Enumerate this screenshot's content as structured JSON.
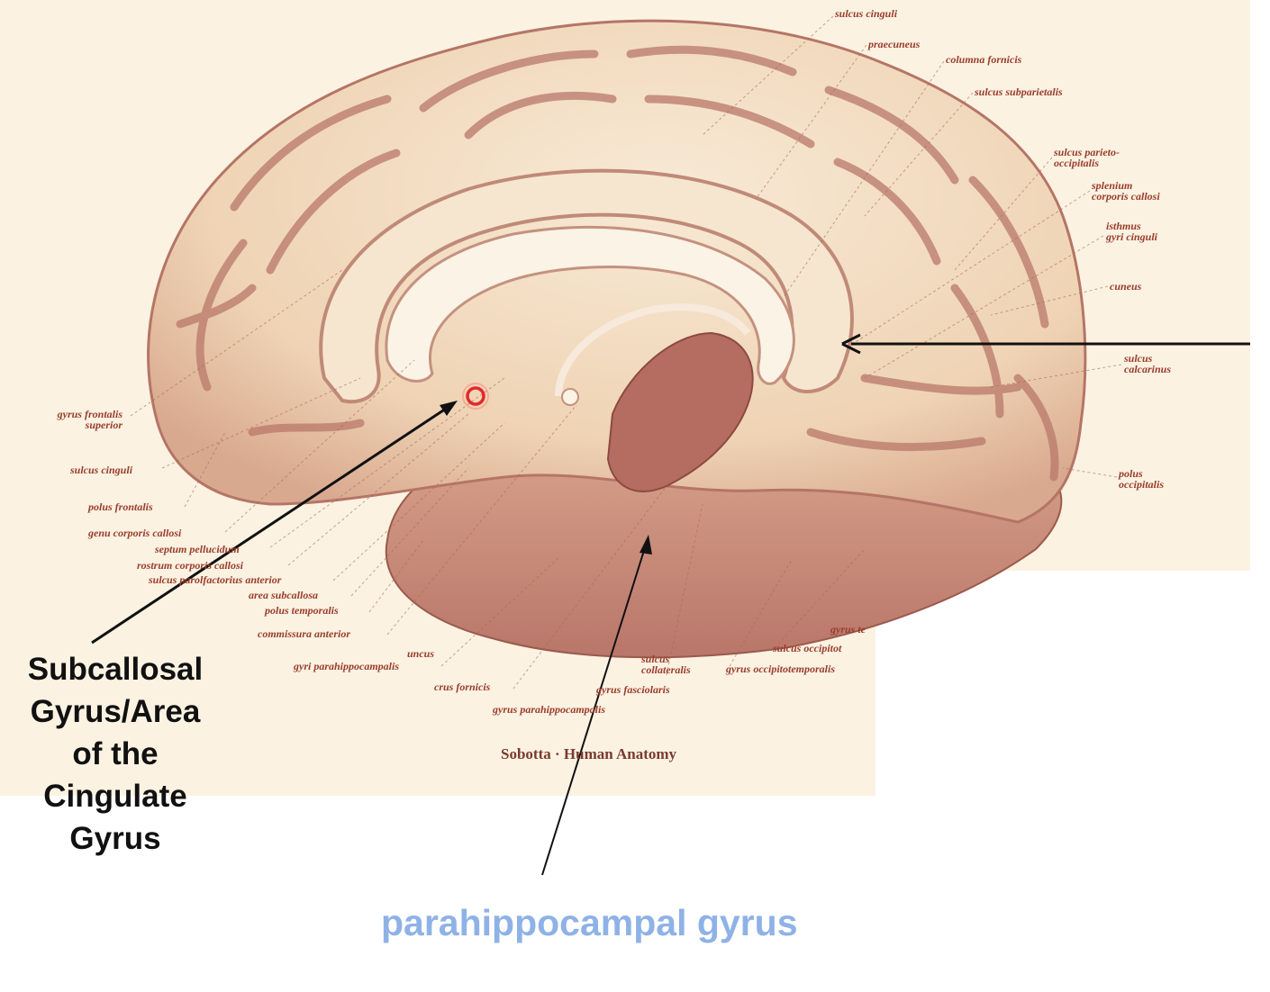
{
  "figure": {
    "source": "Sobotta · Human Anatomy",
    "labels_right": [
      {
        "id": "sulcus-cinguli-top",
        "text": "sulcus cinguli"
      },
      {
        "id": "praecuneus",
        "text": "praecuneus"
      },
      {
        "id": "columna-fornicis",
        "text": "columna fornicis"
      },
      {
        "id": "sulcus-subparietalis",
        "text": "sulcus subparietalis"
      },
      {
        "id": "sulcus-parieto-occipitalis",
        "text": "sulcus parieto-\noccipitalis"
      },
      {
        "id": "splenium",
        "text": "splenium\ncorporis callosi"
      },
      {
        "id": "isthmus",
        "text": "isthmus\ngyri cinguli"
      },
      {
        "id": "cuneus",
        "text": "cuneus"
      },
      {
        "id": "sulcus-calcarinus",
        "text": "sulcus\ncalcarinus"
      },
      {
        "id": "polus-occipitalis",
        "text": "polus\noccipitalis"
      }
    ],
    "labels_left": [
      {
        "id": "gyrus-frontalis-superior",
        "text": "gyrus frontalis\nsuperior"
      },
      {
        "id": "sulcus-cinguli-left",
        "text": "sulcus cinguli"
      },
      {
        "id": "polus-frontalis",
        "text": "polus frontalis"
      },
      {
        "id": "genu",
        "text": "genu corporis callosi"
      },
      {
        "id": "septum",
        "text": "septum pellucidum"
      },
      {
        "id": "rostrum",
        "text": "rostrum corporis callosi"
      },
      {
        "id": "sulcus-parolfactorius",
        "text": "sulcus parolfactorius anterior"
      },
      {
        "id": "area-subcallosa",
        "text": "area subcallosa"
      },
      {
        "id": "polus-temporalis",
        "text": "polus temporalis"
      },
      {
        "id": "commissura-anterior",
        "text": "commissura anterior"
      }
    ],
    "labels_bottom": [
      {
        "id": "uncus",
        "text": "uncus"
      },
      {
        "id": "gyri-parahippocampalis",
        "text": "gyri parahippocampalis"
      },
      {
        "id": "crus-fornicis",
        "text": "crus fornicis"
      },
      {
        "id": "gyrus-parahippocampalis",
        "text": "gyrus parahippocampalis"
      },
      {
        "id": "gyrus-fasciolaris",
        "text": "gyrus fasciolaris"
      },
      {
        "id": "sulcus-collateralis",
        "text": "sulcus\ncollateralis"
      },
      {
        "id": "gyrus-occipitotemporalis",
        "text": "gyrus occipitotemporalis"
      },
      {
        "id": "sulcus-occipitotemporalis",
        "text": "sulcus occipitot"
      },
      {
        "id": "gyrus-te",
        "text": "gyrus te"
      }
    ]
  },
  "callout": {
    "lines": [
      "Subcallosal",
      "Gyrus/Area",
      "of the",
      "Cingulate",
      "Gyrus"
    ]
  },
  "answer": {
    "text": "parahippocampal gyrus",
    "color": "#8fb2e6"
  },
  "colors": {
    "background_panel": "#fbf2e2",
    "brain_fill": "#f2dcbf",
    "brain_dark": "#b8756a",
    "label_color": "#9a3d2c"
  }
}
